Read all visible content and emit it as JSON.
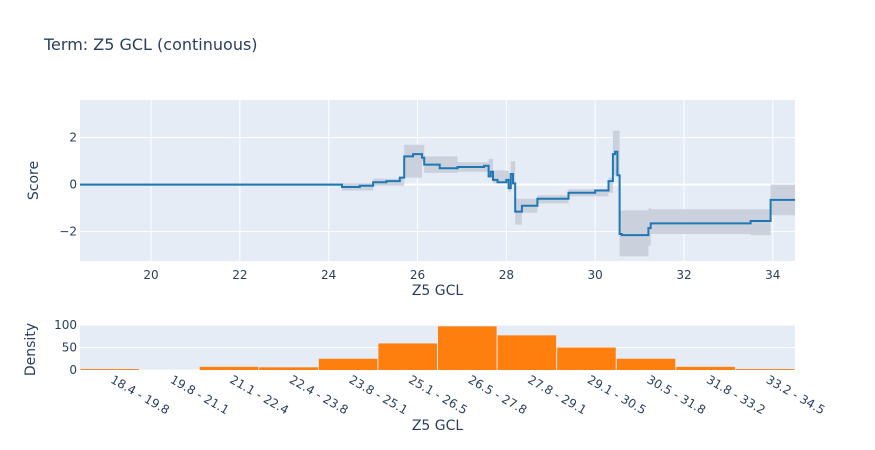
{
  "title": "Term: Z5 GCL (continuous)",
  "chart_data": [
    {
      "type": "line",
      "xlabel": "Z5 GCL",
      "ylabel": "Score",
      "xlim": [
        18.4,
        34.5
      ],
      "ylim": [
        -3.25,
        3.6
      ],
      "xticks": [
        20,
        22,
        24,
        26,
        28,
        30,
        32,
        34
      ],
      "yticks": [
        -2,
        0,
        2
      ],
      "ytick_labels": [
        "−2",
        "0",
        "2"
      ],
      "grid": true,
      "colors": {
        "line": "#1f77b4",
        "band": "#c8ced9",
        "plot_bg": "#e5ecf6"
      },
      "series": [
        {
          "values": [
            [
              18.4,
              0.0
            ],
            [
              24.3,
              0.0
            ],
            [
              24.3,
              -0.1
            ],
            [
              24.7,
              -0.1
            ],
            [
              24.7,
              -0.05
            ],
            [
              25.0,
              -0.05
            ],
            [
              25.0,
              0.1
            ],
            [
              25.3,
              0.1
            ],
            [
              25.3,
              0.15
            ],
            [
              25.6,
              0.15
            ],
            [
              25.6,
              0.3
            ],
            [
              25.7,
              0.3
            ],
            [
              25.7,
              1.2
            ],
            [
              25.9,
              1.2
            ],
            [
              25.9,
              1.3
            ],
            [
              26.1,
              1.3
            ],
            [
              26.1,
              1.15
            ],
            [
              26.15,
              1.15
            ],
            [
              26.15,
              0.85
            ],
            [
              26.5,
              0.85
            ],
            [
              26.5,
              0.7
            ],
            [
              26.9,
              0.7
            ],
            [
              26.9,
              0.75
            ],
            [
              27.5,
              0.75
            ],
            [
              27.5,
              0.8
            ],
            [
              27.6,
              0.8
            ],
            [
              27.6,
              0.35
            ],
            [
              27.65,
              0.35
            ],
            [
              27.65,
              0.55
            ],
            [
              27.7,
              0.55
            ],
            [
              27.7,
              0.2
            ],
            [
              27.8,
              0.2
            ],
            [
              27.8,
              0.1
            ],
            [
              28.0,
              0.1
            ],
            [
              28.0,
              0.2
            ],
            [
              28.05,
              0.2
            ],
            [
              28.05,
              -0.15
            ],
            [
              28.1,
              -0.15
            ],
            [
              28.1,
              0.45
            ],
            [
              28.15,
              0.45
            ],
            [
              28.15,
              0.05
            ],
            [
              28.2,
              0.05
            ],
            [
              28.2,
              -1.15
            ],
            [
              28.35,
              -1.15
            ],
            [
              28.35,
              -0.9
            ],
            [
              28.7,
              -0.9
            ],
            [
              28.7,
              -0.6
            ],
            [
              29.4,
              -0.6
            ],
            [
              29.4,
              -0.35
            ],
            [
              30.0,
              -0.35
            ],
            [
              30.0,
              -0.25
            ],
            [
              30.3,
              -0.25
            ],
            [
              30.3,
              0.15
            ],
            [
              30.4,
              0.15
            ],
            [
              30.4,
              1.3
            ],
            [
              30.45,
              1.3
            ],
            [
              30.45,
              1.4
            ],
            [
              30.5,
              1.4
            ],
            [
              30.5,
              0.4
            ],
            [
              30.55,
              0.4
            ],
            [
              30.55,
              -2.1
            ],
            [
              30.6,
              -2.1
            ],
            [
              30.6,
              -2.15
            ],
            [
              31.2,
              -2.15
            ],
            [
              31.2,
              -1.85
            ],
            [
              31.25,
              -1.85
            ],
            [
              31.25,
              -1.65
            ],
            [
              33.5,
              -1.65
            ],
            [
              33.5,
              -1.55
            ],
            [
              33.95,
              -1.55
            ],
            [
              33.95,
              -0.65
            ],
            [
              34.5,
              -0.65
            ]
          ],
          "band": [
            [
              18.4,
              -0.05,
              0.05
            ],
            [
              24.3,
              -0.05,
              0.05
            ],
            [
              24.3,
              -0.25,
              0.05
            ],
            [
              25.0,
              -0.25,
              0.05
            ],
            [
              25.0,
              -0.05,
              0.25
            ],
            [
              25.6,
              -0.05,
              0.3
            ],
            [
              25.7,
              0.3,
              1.7
            ],
            [
              26.1,
              1.0,
              1.7
            ],
            [
              26.15,
              0.5,
              1.2
            ],
            [
              26.9,
              0.55,
              0.95
            ],
            [
              27.6,
              0.5,
              1.1
            ],
            [
              27.7,
              0.05,
              0.6
            ],
            [
              28.05,
              -0.3,
              0.5
            ],
            [
              28.1,
              0.0,
              1.0
            ],
            [
              28.2,
              -1.7,
              -0.6
            ],
            [
              28.35,
              -1.2,
              -0.6
            ],
            [
              28.7,
              -0.8,
              -0.45
            ],
            [
              29.4,
              -0.5,
              -0.2
            ],
            [
              30.3,
              -0.35,
              0.3
            ],
            [
              30.4,
              0.4,
              2.3
            ],
            [
              30.55,
              -3.05,
              -1.1
            ],
            [
              31.2,
              -2.6,
              -1.0
            ],
            [
              31.25,
              -2.1,
              -1.05
            ],
            [
              33.5,
              -2.15,
              -1.05
            ],
            [
              33.95,
              -1.3,
              0.0
            ],
            [
              34.5,
              -1.3,
              0.0
            ]
          ]
        }
      ]
    },
    {
      "type": "bar",
      "xlabel": "Z5 GCL",
      "ylabel": "Density",
      "ylim": [
        0,
        100
      ],
      "yticks": [
        0,
        50,
        100
      ],
      "ytick_labels": [
        "0",
        "50",
        "100"
      ],
      "grid": true,
      "colors": {
        "bar": "#ff7f0e",
        "plot_bg": "#e5ecf6"
      },
      "categories": [
        "18.4 - 19.8",
        "19.8 - 21.1",
        "21.1 - 22.4",
        "22.4 - 23.8",
        "23.8 - 25.1",
        "25.1 - 26.5",
        "26.5 - 27.8",
        "27.8 - 29.1",
        "29.1 - 30.5",
        "30.5 - 31.8",
        "31.8 - 33.2",
        "33.2 - 34.5"
      ],
      "values": [
        2,
        0,
        7,
        6,
        25,
        59,
        97,
        77,
        50,
        25,
        7,
        2
      ]
    }
  ]
}
